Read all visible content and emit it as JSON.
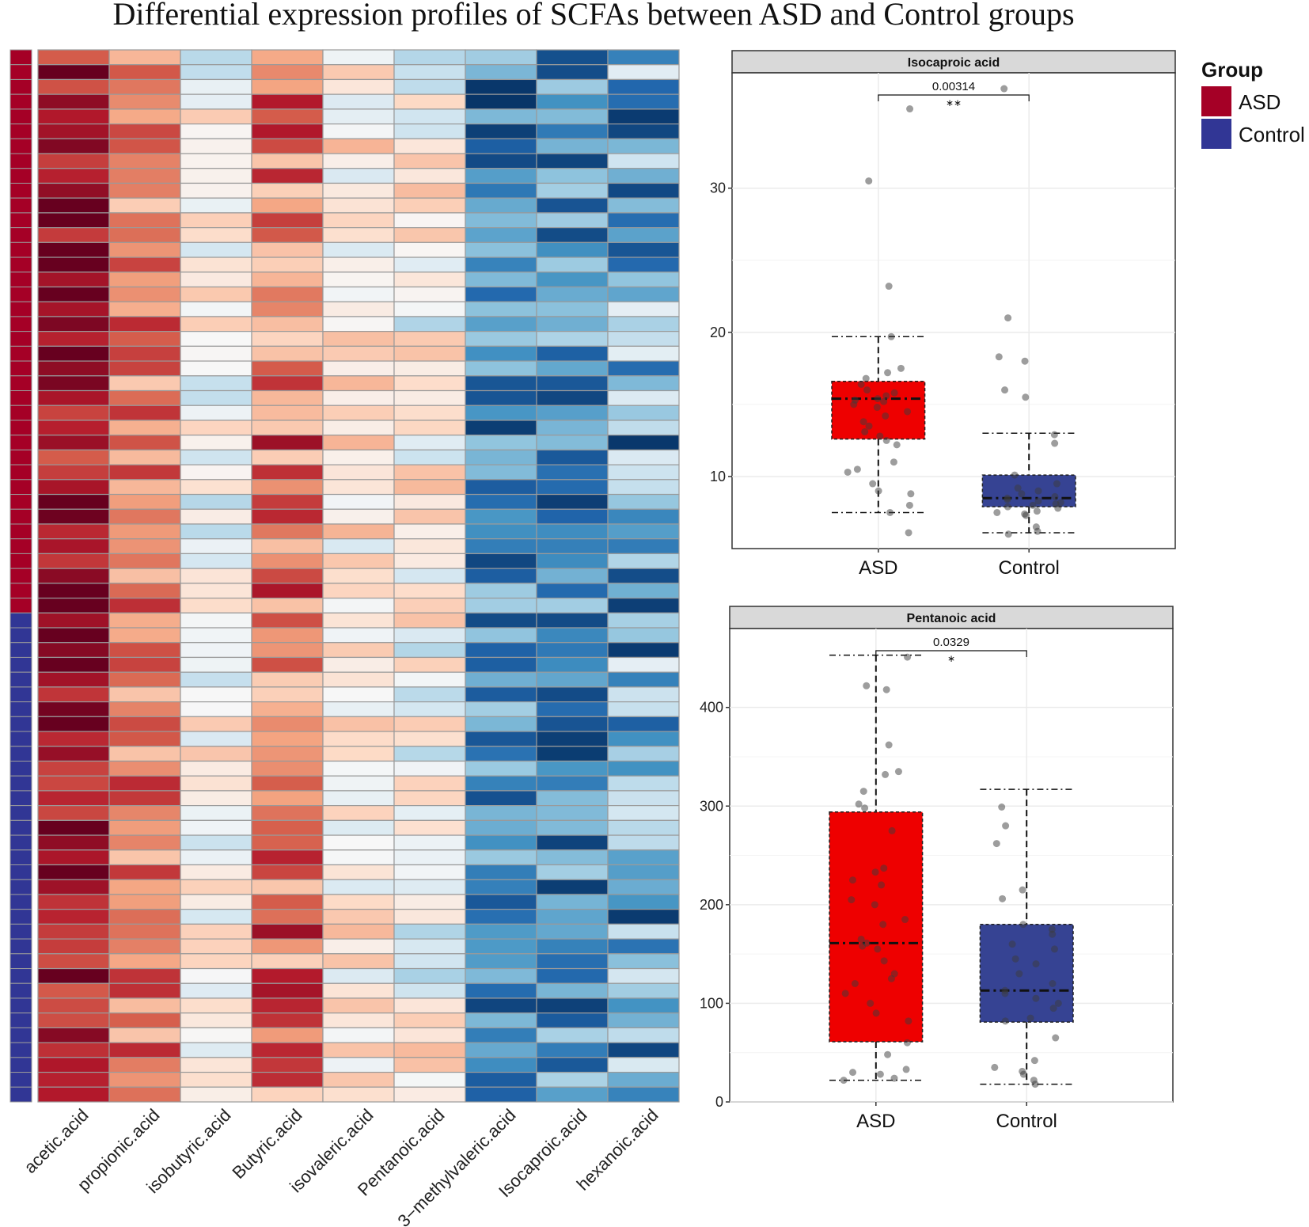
{
  "title": "Differential expression profiles of SCFAs between ASD and Control groups",
  "colors": {
    "asd_annotation": "#a50026",
    "control_annotation": "#313695",
    "asd_box": "#ee0000",
    "control_box": "#364393",
    "panel_strip": "#d9d9d9",
    "grid": "#ebebeb"
  },
  "chart_data": [
    {
      "type": "heatmap",
      "name": "scfa-heatmap",
      "columns": [
        "acetic.acid",
        "propionic.acid",
        "isobutyric.acid",
        "Butyric.acid",
        "isovaleric.acid",
        "Pentanoic.acid",
        "3−methylvaleric.acid",
        "Isocaproic.acid",
        "hexanoic.acid"
      ],
      "row_count": 71,
      "row_groups": [
        {
          "group": "ASD",
          "rows": 38
        },
        {
          "group": "Control",
          "rows": 33
        }
      ],
      "scale": {
        "low": "#2166ac",
        "mid": "#f7f7f7",
        "high": "#b2182b",
        "min": -3,
        "max": 3
      },
      "column_means": [
        2.6,
        1.5,
        0.0,
        1.6,
        0.3,
        0.0,
        -2.0,
        -1.9,
        -1.6
      ],
      "column_spread": [
        0.35,
        0.35,
        0.4,
        0.45,
        0.35,
        0.45,
        0.45,
        0.45,
        0.6
      ]
    },
    {
      "type": "box",
      "name": "isocaproic-boxplot",
      "title": "Isocaproic acid",
      "categories": [
        "ASD",
        "Control"
      ],
      "ylim": [
        5,
        38
      ],
      "yticks": [
        10,
        20,
        30
      ],
      "boxes": [
        {
          "group": "ASD",
          "min": 7.5,
          "q1": 12.6,
          "median": 15.4,
          "q3": 16.6,
          "max": 19.7
        },
        {
          "group": "Control",
          "min": 6.1,
          "q1": 7.9,
          "median": 8.5,
          "q3": 10.1,
          "max": 13.0
        }
      ],
      "points": [
        {
          "group": "ASD",
          "values": [
            35.5,
            30.5,
            23.2,
            19.7,
            17.5,
            17.2,
            16.8,
            16.4,
            16.0,
            15.8,
            15.6,
            15.4,
            15.3,
            15.2,
            15.0,
            14.8,
            14.5,
            14.2,
            13.8,
            13.5,
            13.1,
            12.8,
            12.5,
            12.2,
            11.0,
            10.5,
            10.3,
            9.5,
            9.0,
            8.8,
            8.0,
            7.5,
            6.1
          ]
        },
        {
          "group": "Control",
          "values": [
            36.9,
            21.0,
            18.3,
            18.0,
            16.0,
            15.5,
            12.9,
            12.3,
            10.1,
            9.5,
            9.2,
            9.0,
            8.8,
            8.6,
            8.5,
            8.4,
            8.3,
            8.2,
            8.1,
            8.0,
            7.9,
            7.8,
            7.6,
            7.5,
            7.4,
            7.3,
            6.5,
            6.2,
            6.0
          ]
        }
      ],
      "annotation": {
        "p_value": "0.00314",
        "marker": "∗∗"
      }
    },
    {
      "type": "box",
      "name": "pentanoic-boxplot",
      "title": "Pentanoic acid",
      "categories": [
        "ASD",
        "Control"
      ],
      "ylim": [
        0,
        480
      ],
      "yticks": [
        0,
        100,
        200,
        300,
        400
      ],
      "boxes": [
        {
          "group": "ASD",
          "min": 22,
          "q1": 61,
          "median": 161,
          "q3": 294,
          "max": 453
        },
        {
          "group": "Control",
          "min": 18,
          "q1": 81,
          "median": 113,
          "q3": 180,
          "max": 317
        }
      ],
      "points": [
        {
          "group": "ASD",
          "values": [
            451,
            422,
            418,
            362,
            335,
            332,
            315,
            302,
            298,
            275,
            237,
            233,
            225,
            220,
            205,
            200,
            185,
            180,
            165,
            161,
            158,
            155,
            143,
            130,
            125,
            120,
            110,
            100,
            90,
            82,
            60,
            48,
            33,
            30,
            28,
            24,
            22
          ]
        },
        {
          "group": "Control",
          "values": [
            299,
            280,
            262,
            215,
            206,
            180,
            175,
            170,
            160,
            155,
            145,
            140,
            130,
            120,
            113,
            110,
            105,
            100,
            95,
            85,
            82,
            65,
            42,
            35,
            31,
            28,
            22,
            18
          ]
        }
      ],
      "annotation": {
        "p_value": "0.0329",
        "marker": "∗"
      }
    }
  ],
  "legend": {
    "title": "Group",
    "items": [
      "ASD",
      "Control"
    ]
  }
}
